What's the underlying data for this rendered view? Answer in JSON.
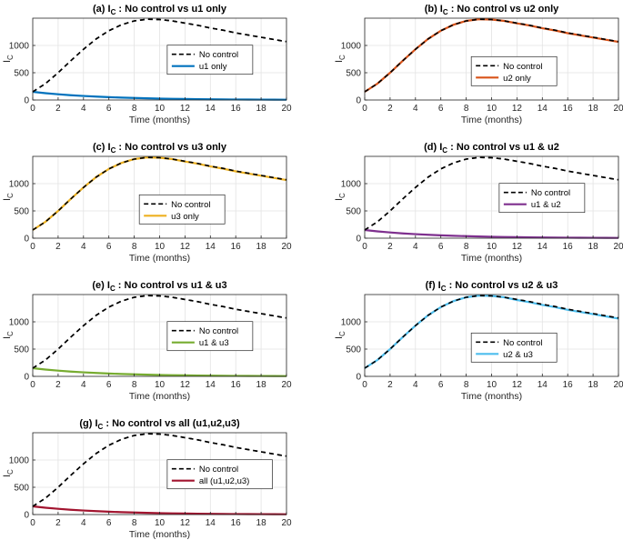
{
  "chart_data": [
    {
      "type": "line",
      "title_main": "(a) I",
      "title_sub": "C",
      "title_rest": ": No control vs u1 only",
      "xlabel": "Time (months)",
      "ylabel_main": "I",
      "ylabel_sub": "C",
      "xlim": [
        0,
        20
      ],
      "ylim": [
        0,
        1500
      ],
      "xticks": [
        0,
        2,
        4,
        6,
        8,
        10,
        12,
        14,
        16,
        18,
        20
      ],
      "yticks": [
        0,
        500,
        1000
      ],
      "grid": true,
      "legend_position": "center-right",
      "x": [
        0,
        1,
        2,
        3,
        4,
        5,
        6,
        7,
        8,
        9,
        10,
        11,
        12,
        13,
        14,
        15,
        16,
        17,
        18,
        19,
        20
      ],
      "series": [
        {
          "name": "No control",
          "style": "dashed",
          "color": "#000000",
          "values": [
            150,
            300,
            500,
            720,
            930,
            1120,
            1270,
            1380,
            1450,
            1480,
            1475,
            1450,
            1410,
            1370,
            1320,
            1280,
            1230,
            1190,
            1150,
            1110,
            1070
          ]
        },
        {
          "name": "u1 only",
          "style": "solid",
          "color": "#0072BD",
          "values": [
            150,
            125,
            105,
            88,
            74,
            62,
            52,
            44,
            37,
            31,
            26,
            22,
            19,
            16,
            13,
            11,
            9,
            8,
            7,
            6,
            5
          ]
        }
      ]
    },
    {
      "type": "line",
      "title_main": "(b) I",
      "title_sub": "C",
      "title_rest": ": No control vs u2 only",
      "xlabel": "Time (months)",
      "ylabel_main": "I",
      "ylabel_sub": "C",
      "xlim": [
        0,
        20
      ],
      "ylim": [
        0,
        1500
      ],
      "xticks": [
        0,
        2,
        4,
        6,
        8,
        10,
        12,
        14,
        16,
        18,
        20
      ],
      "yticks": [
        0,
        500,
        1000
      ],
      "grid": true,
      "legend_position": "bottom-center",
      "x": [
        0,
        1,
        2,
        3,
        4,
        5,
        6,
        7,
        8,
        9,
        10,
        11,
        12,
        13,
        14,
        15,
        16,
        17,
        18,
        19,
        20
      ],
      "series": [
        {
          "name": "No control",
          "style": "dashed",
          "color": "#000000",
          "values": [
            150,
            300,
            500,
            720,
            930,
            1120,
            1270,
            1380,
            1450,
            1480,
            1475,
            1450,
            1410,
            1370,
            1320,
            1280,
            1230,
            1190,
            1150,
            1110,
            1070
          ]
        },
        {
          "name": "u2 only",
          "style": "solid",
          "color": "#D95319",
          "values": [
            150,
            300,
            500,
            720,
            930,
            1120,
            1270,
            1380,
            1450,
            1480,
            1475,
            1450,
            1405,
            1365,
            1315,
            1275,
            1225,
            1185,
            1145,
            1105,
            1065
          ]
        }
      ]
    },
    {
      "type": "line",
      "title_main": "(c) I",
      "title_sub": "C",
      "title_rest": ": No control vs u3 only",
      "xlabel": "Time (months)",
      "ylabel_main": "I",
      "ylabel_sub": "C",
      "xlim": [
        0,
        20
      ],
      "ylim": [
        0,
        1500
      ],
      "xticks": [
        0,
        2,
        4,
        6,
        8,
        10,
        12,
        14,
        16,
        18,
        20
      ],
      "yticks": [
        0,
        500,
        1000
      ],
      "grid": true,
      "legend_position": "bottom-center",
      "x": [
        0,
        1,
        2,
        3,
        4,
        5,
        6,
        7,
        8,
        9,
        10,
        11,
        12,
        13,
        14,
        15,
        16,
        17,
        18,
        19,
        20
      ],
      "series": [
        {
          "name": "No control",
          "style": "dashed",
          "color": "#000000",
          "values": [
            150,
            300,
            500,
            720,
            930,
            1120,
            1270,
            1380,
            1450,
            1480,
            1475,
            1450,
            1410,
            1370,
            1320,
            1280,
            1230,
            1190,
            1150,
            1110,
            1070
          ]
        },
        {
          "name": "u3 only",
          "style": "solid",
          "color": "#EDB120",
          "values": [
            150,
            300,
            500,
            720,
            930,
            1120,
            1270,
            1380,
            1450,
            1480,
            1475,
            1450,
            1405,
            1365,
            1315,
            1275,
            1225,
            1185,
            1145,
            1105,
            1065
          ]
        }
      ]
    },
    {
      "type": "line",
      "title_main": "(d) I",
      "title_sub": "C",
      "title_rest": ": No control vs u1 & u2",
      "xlabel": "Time (months)",
      "ylabel_main": "I",
      "ylabel_sub": "C",
      "xlim": [
        0,
        20
      ],
      "ylim": [
        0,
        1500
      ],
      "xticks": [
        0,
        2,
        4,
        6,
        8,
        10,
        12,
        14,
        16,
        18,
        20
      ],
      "yticks": [
        0,
        500,
        1000
      ],
      "grid": true,
      "legend_position": "center-right",
      "x": [
        0,
        1,
        2,
        3,
        4,
        5,
        6,
        7,
        8,
        9,
        10,
        11,
        12,
        13,
        14,
        15,
        16,
        17,
        18,
        19,
        20
      ],
      "series": [
        {
          "name": "No control",
          "style": "dashed",
          "color": "#000000",
          "values": [
            150,
            300,
            500,
            720,
            930,
            1120,
            1270,
            1380,
            1450,
            1480,
            1475,
            1450,
            1410,
            1370,
            1320,
            1280,
            1230,
            1190,
            1150,
            1110,
            1070
          ]
        },
        {
          "name": "u1 & u2",
          "style": "solid",
          "color": "#7E2F8E",
          "values": [
            150,
            125,
            105,
            88,
            74,
            62,
            52,
            44,
            37,
            31,
            26,
            22,
            19,
            16,
            13,
            11,
            9,
            8,
            7,
            6,
            5
          ]
        }
      ]
    },
    {
      "type": "line",
      "title_main": "(e) I",
      "title_sub": "C",
      "title_rest": ": No control vs u1 & u3",
      "xlabel": "Time (months)",
      "ylabel_main": "I",
      "ylabel_sub": "C",
      "xlim": [
        0,
        20
      ],
      "ylim": [
        0,
        1500
      ],
      "xticks": [
        0,
        2,
        4,
        6,
        8,
        10,
        12,
        14,
        16,
        18,
        20
      ],
      "yticks": [
        0,
        500,
        1000
      ],
      "grid": true,
      "legend_position": "center-right",
      "x": [
        0,
        1,
        2,
        3,
        4,
        5,
        6,
        7,
        8,
        9,
        10,
        11,
        12,
        13,
        14,
        15,
        16,
        17,
        18,
        19,
        20
      ],
      "series": [
        {
          "name": "No control",
          "style": "dashed",
          "color": "#000000",
          "values": [
            150,
            300,
            500,
            720,
            930,
            1120,
            1270,
            1380,
            1450,
            1480,
            1475,
            1450,
            1410,
            1370,
            1320,
            1280,
            1230,
            1190,
            1150,
            1110,
            1070
          ]
        },
        {
          "name": "u1 & u3",
          "style": "solid",
          "color": "#77AC30",
          "values": [
            150,
            125,
            105,
            88,
            74,
            62,
            52,
            44,
            37,
            31,
            26,
            22,
            19,
            16,
            13,
            11,
            9,
            8,
            7,
            6,
            5
          ]
        }
      ]
    },
    {
      "type": "line",
      "title_main": "(f) I",
      "title_sub": "C",
      "title_rest": ": No control vs u2 & u3",
      "xlabel": "Time (months)",
      "ylabel_main": "I",
      "ylabel_sub": "C",
      "xlim": [
        0,
        20
      ],
      "ylim": [
        0,
        1500
      ],
      "xticks": [
        0,
        2,
        4,
        6,
        8,
        10,
        12,
        14,
        16,
        18,
        20
      ],
      "yticks": [
        0,
        500,
        1000
      ],
      "grid": true,
      "legend_position": "bottom-center",
      "x": [
        0,
        1,
        2,
        3,
        4,
        5,
        6,
        7,
        8,
        9,
        10,
        11,
        12,
        13,
        14,
        15,
        16,
        17,
        18,
        19,
        20
      ],
      "series": [
        {
          "name": "No control",
          "style": "dashed",
          "color": "#000000",
          "values": [
            150,
            300,
            500,
            720,
            930,
            1120,
            1270,
            1380,
            1450,
            1480,
            1475,
            1450,
            1410,
            1370,
            1320,
            1280,
            1230,
            1190,
            1150,
            1110,
            1070
          ]
        },
        {
          "name": "u2 & u3",
          "style": "solid",
          "color": "#4DBEEE",
          "values": [
            150,
            300,
            500,
            720,
            930,
            1120,
            1270,
            1380,
            1450,
            1480,
            1475,
            1450,
            1400,
            1360,
            1310,
            1270,
            1220,
            1180,
            1140,
            1100,
            1060
          ]
        }
      ]
    },
    {
      "type": "line",
      "title_main": "(g) I",
      "title_sub": "C",
      "title_rest": ": No control vs all (u1,u2,u3)",
      "xlabel": "Time (months)",
      "ylabel_main": "I",
      "ylabel_sub": "C",
      "xlim": [
        0,
        20
      ],
      "ylim": [
        0,
        1500
      ],
      "xticks": [
        0,
        2,
        4,
        6,
        8,
        10,
        12,
        14,
        16,
        18,
        20
      ],
      "yticks": [
        0,
        500,
        1000
      ],
      "grid": true,
      "legend_position": "center-right",
      "x": [
        0,
        1,
        2,
        3,
        4,
        5,
        6,
        7,
        8,
        9,
        10,
        11,
        12,
        13,
        14,
        15,
        16,
        17,
        18,
        19,
        20
      ],
      "series": [
        {
          "name": "No control",
          "style": "dashed",
          "color": "#000000",
          "values": [
            150,
            300,
            500,
            720,
            930,
            1120,
            1270,
            1380,
            1450,
            1480,
            1475,
            1450,
            1410,
            1370,
            1320,
            1280,
            1230,
            1190,
            1150,
            1110,
            1070
          ]
        },
        {
          "name": "all (u1,u2,u3)",
          "style": "solid",
          "color": "#A2142F",
          "values": [
            150,
            125,
            105,
            88,
            74,
            62,
            52,
            44,
            37,
            31,
            26,
            22,
            19,
            16,
            13,
            11,
            9,
            8,
            7,
            6,
            5
          ]
        }
      ]
    }
  ]
}
